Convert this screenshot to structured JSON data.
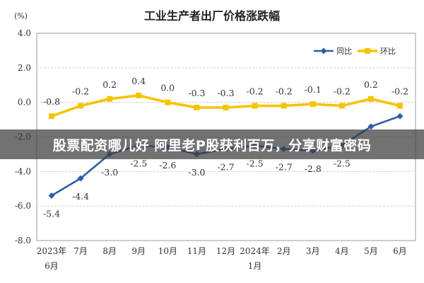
{
  "chart_data": {
    "type": "line",
    "title": "工业生产者出厂价格涨跌幅",
    "unit_label": "(%)",
    "ylim": [
      -8.0,
      4.0
    ],
    "yticks": [
      "4.0",
      "2.0",
      "0.0",
      "-2.0",
      "-4.0",
      "-6.0",
      "-8.0"
    ],
    "ytick_values": [
      4,
      2,
      0,
      -2,
      -4,
      -6,
      -8
    ],
    "categories": [
      {
        "line1": "2023年",
        "line2": "6月"
      },
      {
        "line1": "7月",
        "line2": ""
      },
      {
        "line1": "8月",
        "line2": ""
      },
      {
        "line1": "9月",
        "line2": ""
      },
      {
        "line1": "10月",
        "line2": ""
      },
      {
        "line1": "11月",
        "line2": ""
      },
      {
        "line1": "12月",
        "line2": ""
      },
      {
        "line1": "2024年",
        "line2": "1月"
      },
      {
        "line1": "2月",
        "line2": ""
      },
      {
        "line1": "3月",
        "line2": ""
      },
      {
        "line1": "4月",
        "line2": ""
      },
      {
        "line1": "5月",
        "line2": ""
      },
      {
        "line1": "6月",
        "line2": ""
      }
    ],
    "legend_position": "top-right",
    "series": [
      {
        "name": "同比",
        "color": "#2b5fa8",
        "values": [
          -5.4,
          -4.4,
          -3.0,
          -2.5,
          -2.6,
          -3.0,
          -2.7,
          -2.5,
          -2.7,
          -2.8,
          -2.5,
          -1.4,
          -0.8
        ],
        "labels": [
          "-5.4",
          "-4.4",
          "-3.0",
          "-2.5",
          "-2.6",
          "-3.0",
          "-2.7",
          "-2.5",
          "-2.7",
          "-2.8",
          "-2.5",
          "",
          ""
        ]
      },
      {
        "name": "环比",
        "color": "#f5c400",
        "values": [
          -0.8,
          -0.2,
          0.2,
          0.4,
          0.0,
          -0.3,
          -0.3,
          -0.2,
          -0.2,
          -0.1,
          -0.2,
          0.2,
          -0.2
        ],
        "labels": [
          "-0.8",
          "-0.2",
          "0.2",
          "0.4",
          "0.0",
          "-0.3",
          "-0.3",
          "-0.2",
          "-0.2",
          "-0.1",
          "-0.2",
          "0.2",
          "-0.2"
        ]
      }
    ]
  },
  "overlay_text": "股票配资哪儿好 阿里老P股获利百万，分享财富密码"
}
